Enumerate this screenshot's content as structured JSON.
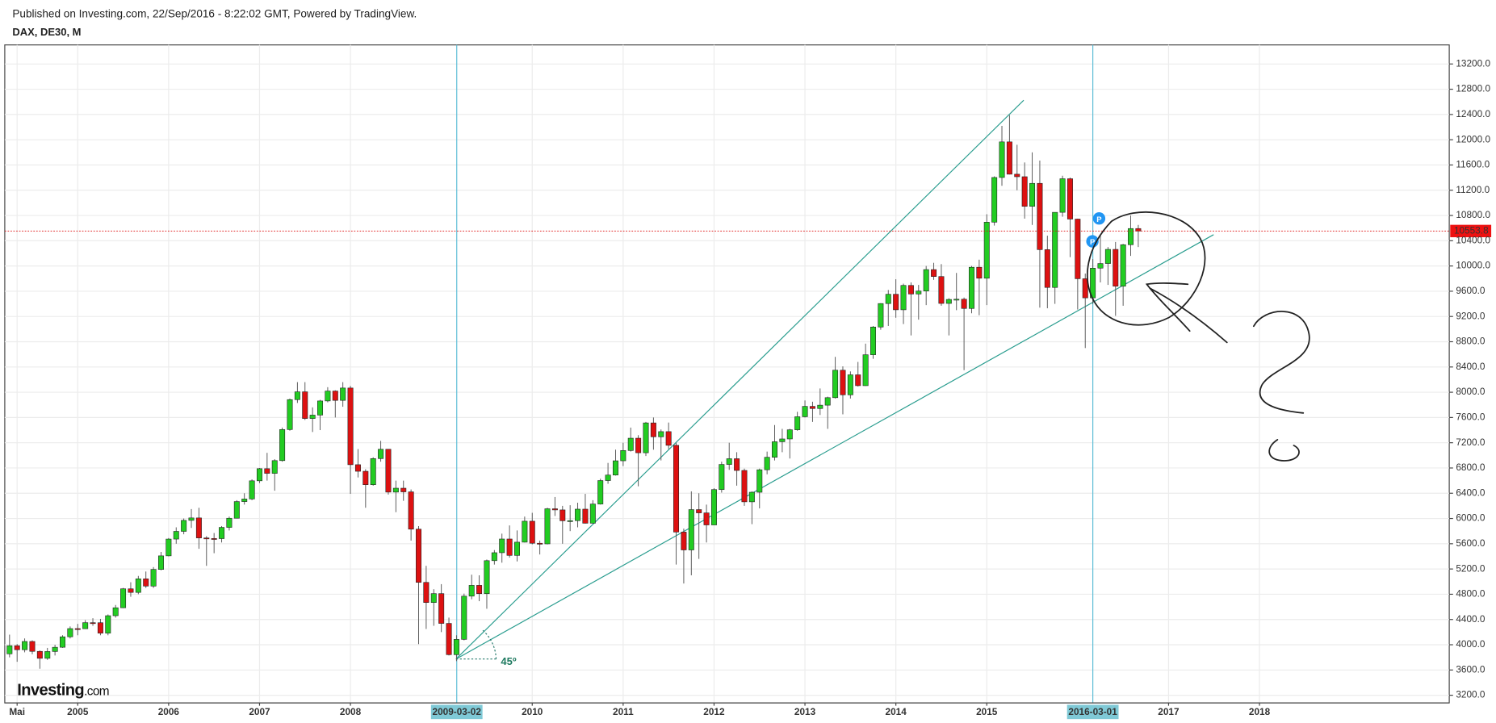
{
  "chart_data": {
    "type": "candlestick",
    "subtitle": "Published on Investing.com, 22/Sep/2016 - 8:22:02 GMT, Powered by TradingView.",
    "title": "DAX, DE30, M",
    "logo": "Investing",
    "logo_suffix": ".com",
    "annotation": "45º",
    "markers": [
      "P",
      "P"
    ],
    "crosshairs": [
      "2009-03-02",
      "2016-03-01"
    ],
    "up_color": "#22cc22",
    "down_color": "#dd1111",
    "grid": true,
    "ylim": [
      3079,
      13502
    ],
    "yticks": [
      {
        "value": 3200,
        "label": "3200.0"
      },
      {
        "value": 3600,
        "label": "3600.0"
      },
      {
        "value": 4000,
        "label": "4000.0"
      },
      {
        "value": 4400,
        "label": "4400.0"
      },
      {
        "value": 4800,
        "label": "4800.0"
      },
      {
        "value": 5200,
        "label": "5200.0"
      },
      {
        "value": 5600,
        "label": "5600.0"
      },
      {
        "value": 6000,
        "label": "6000.0"
      },
      {
        "value": 6400,
        "label": "6400.0"
      },
      {
        "value": 6800,
        "label": "6800.0"
      },
      {
        "value": 7200,
        "label": "7200.0"
      },
      {
        "value": 7600,
        "label": "7600.0"
      },
      {
        "value": 8000,
        "label": "8000.0"
      },
      {
        "value": 8400,
        "label": "8400.0"
      },
      {
        "value": 8800,
        "label": "8800.0"
      },
      {
        "value": 9200,
        "label": "9200.0"
      },
      {
        "value": 9600,
        "label": "9600.0"
      },
      {
        "value": 10000,
        "label": "10000.0"
      },
      {
        "value": 10400,
        "label": "10400.0"
      },
      {
        "value": 10800,
        "label": "10800.0"
      },
      {
        "value": 11200,
        "label": "11200.0"
      },
      {
        "value": 11600,
        "label": "11600.0"
      },
      {
        "value": 12000,
        "label": "12000.0"
      },
      {
        "value": 12400,
        "label": "12400.0"
      },
      {
        "value": 12800,
        "label": "12800.0"
      },
      {
        "value": 13200,
        "label": "13200.0"
      }
    ],
    "xticks": [
      {
        "value": "2004-05",
        "label": "Mai"
      },
      {
        "value": "2005-01",
        "label": "2005"
      },
      {
        "value": "2006-01",
        "label": "2006"
      },
      {
        "value": "2007-01",
        "label": "2007"
      },
      {
        "value": "2008-01",
        "label": "2008"
      },
      {
        "value": "2010-01",
        "label": "2010"
      },
      {
        "value": "2011-01",
        "label": "2011"
      },
      {
        "value": "2012-01",
        "label": "2012"
      },
      {
        "value": "2013-01",
        "label": "2013"
      },
      {
        "value": "2014-01",
        "label": "2014"
      },
      {
        "value": "2015-01",
        "label": "2015"
      },
      {
        "value": "2017-01",
        "label": "2017"
      },
      {
        "value": "2018-01",
        "label": "2018"
      }
    ],
    "x": [
      "2004-04",
      "2004-05",
      "2004-06",
      "2004-07",
      "2004-08",
      "2004-09",
      "2004-10",
      "2004-11",
      "2004-12",
      "2005-01",
      "2005-02",
      "2005-03",
      "2005-04",
      "2005-05",
      "2005-06",
      "2005-07",
      "2005-08",
      "2005-09",
      "2005-10",
      "2005-11",
      "2005-12",
      "2006-01",
      "2006-02",
      "2006-03",
      "2006-04",
      "2006-05",
      "2006-06",
      "2006-07",
      "2006-08",
      "2006-09",
      "2006-10",
      "2006-11",
      "2006-12",
      "2007-01",
      "2007-02",
      "2007-03",
      "2007-04",
      "2007-05",
      "2007-06",
      "2007-07",
      "2007-08",
      "2007-09",
      "2007-10",
      "2007-11",
      "2007-12",
      "2008-01",
      "2008-02",
      "2008-03",
      "2008-04",
      "2008-05",
      "2008-06",
      "2008-07",
      "2008-08",
      "2008-09",
      "2008-10",
      "2008-11",
      "2008-12",
      "2009-01",
      "2009-02",
      "2009-03",
      "2009-04",
      "2009-05",
      "2009-06",
      "2009-07",
      "2009-08",
      "2009-09",
      "2009-10",
      "2009-11",
      "2009-12",
      "2010-01",
      "2010-02",
      "2010-03",
      "2010-04",
      "2010-05",
      "2010-06",
      "2010-07",
      "2010-08",
      "2010-09",
      "2010-10",
      "2010-11",
      "2010-12",
      "2011-01",
      "2011-02",
      "2011-03",
      "2011-04",
      "2011-05",
      "2011-06",
      "2011-07",
      "2011-08",
      "2011-09",
      "2011-10",
      "2011-11",
      "2011-12",
      "2012-01",
      "2012-02",
      "2012-03",
      "2012-04",
      "2012-05",
      "2012-06",
      "2012-07",
      "2012-08",
      "2012-09",
      "2012-10",
      "2012-11",
      "2012-12",
      "2013-01",
      "2013-02",
      "2013-03",
      "2013-04",
      "2013-05",
      "2013-06",
      "2013-07",
      "2013-08",
      "2013-09",
      "2013-10",
      "2013-11",
      "2013-12",
      "2014-01",
      "2014-02",
      "2014-03",
      "2014-04",
      "2014-05",
      "2014-06",
      "2014-07",
      "2014-08",
      "2014-09",
      "2014-10",
      "2014-11",
      "2014-12",
      "2015-01",
      "2015-02",
      "2015-03",
      "2015-04",
      "2015-05",
      "2015-06",
      "2015-07",
      "2015-08",
      "2015-09",
      "2015-10",
      "2015-11",
      "2015-12",
      "2016-01",
      "2016-02",
      "2016-03",
      "2016-04",
      "2016-05",
      "2016-06",
      "2016-07",
      "2016-08",
      "2016-09"
    ],
    "open": [
      3856,
      3985,
      3921,
      4052,
      3895,
      3785,
      3893,
      3960,
      4126,
      4256,
      4254,
      4350,
      4349,
      4184,
      4460,
      4586,
      4886,
      4829,
      5044,
      4929,
      5193,
      5408,
      5674,
      5796,
      5970,
      6009,
      5692,
      5683,
      5681,
      5859,
      6004,
      6268,
      6309,
      6597,
      6789,
      6715,
      6917,
      7409,
      7883,
      8007,
      7584,
      7638,
      7862,
      8019,
      7871,
      8067,
      6852,
      6748,
      6535,
      6949,
      7097,
      6418,
      6480,
      6422,
      5831,
      4988,
      4669,
      4810,
      4338,
      3843,
      4085,
      4770,
      4941,
      4809,
      5332,
      5458,
      5675,
      5415,
      5625,
      5957,
      5608,
      5598,
      6154,
      6136,
      5964,
      5966,
      6148,
      5925,
      6229,
      6601,
      6688,
      6914,
      7077,
      7272,
      7041,
      7514,
      7294,
      7376,
      7159,
      5785,
      5502,
      6141,
      6089,
      5898,
      6458,
      6856,
      6947,
      6761,
      6264,
      6416,
      6772,
      6970,
      7216,
      7260,
      7405,
      7612,
      7776,
      7742,
      7795,
      7914,
      8349,
      7959,
      8276,
      8104,
      8594,
      9033,
      9405,
      9552,
      9306,
      9692,
      9556,
      9603,
      9943,
      9833,
      9407,
      9470,
      9474,
      9327,
      9980,
      9806,
      10694,
      11402,
      11966,
      11454,
      11414,
      10945,
      11309,
      10259,
      9660,
      10850,
      11382,
      10743,
      9798,
      9495,
      9966,
      10039,
      10263,
      9680,
      10337,
      10593
    ],
    "high": [
      4160,
      4010,
      4100,
      4070,
      3910,
      3950,
      4000,
      4150,
      4290,
      4330,
      4390,
      4420,
      4410,
      4480,
      4630,
      4900,
      4990,
      5090,
      5160,
      5230,
      5470,
      5690,
      5860,
      6000,
      6150,
      6170,
      5720,
      5770,
      5880,
      6030,
      6290,
      6400,
      6620,
      6800,
      7040,
      6940,
      7440,
      7900,
      8160,
      8160,
      7760,
      7880,
      8080,
      8030,
      8160,
      8100,
      7100,
      6780,
      6970,
      7230,
      7100,
      6600,
      6600,
      6460,
      5880,
      5250,
      4880,
      4960,
      4430,
      4150,
      4810,
      5110,
      5100,
      5350,
      5500,
      5760,
      5890,
      5810,
      6030,
      6090,
      5650,
      6170,
      6340,
      6200,
      6210,
      6250,
      6390,
      6290,
      6630,
      6880,
      7090,
      7200,
      7440,
      7320,
      7530,
      7600,
      7410,
      7520,
      7200,
      5840,
      6430,
      6400,
      6220,
      6480,
      6900,
      7200,
      7050,
      6790,
      6430,
      6790,
      7060,
      7480,
      7420,
      7420,
      7690,
      7870,
      7850,
      8060,
      7930,
      8560,
      8410,
      8330,
      8480,
      8770,
      9050,
      9410,
      9620,
      9790,
      9720,
      9740,
      9700,
      10000,
      10050,
      10030,
      9490,
      9890,
      9500,
      10000,
      10100,
      10820,
      11420,
      12220,
      12390,
      11920,
      11640,
      11800,
      11670,
      10480,
      10850,
      11430,
      11400,
      10750,
      9880,
      10110,
      10480,
      10300,
      10380,
      10350,
      10800,
      10650
    ],
    "low": [
      3800,
      3730,
      3880,
      3850,
      3620,
      3760,
      3830,
      3950,
      4100,
      4150,
      4250,
      4300,
      4150,
      4150,
      4430,
      4580,
      4760,
      4800,
      4900,
      4900,
      5180,
      5400,
      5600,
      5750,
      5850,
      5520,
      5250,
      5450,
      5620,
      5810,
      6000,
      6220,
      6290,
      6560,
      6600,
      6440,
      6900,
      7390,
      7830,
      7560,
      7370,
      7400,
      7840,
      7600,
      7770,
      6390,
      6650,
      6170,
      6520,
      6900,
      6380,
      6100,
      6280,
      5650,
      4010,
      4250,
      4300,
      4200,
      3830,
      3740,
      4070,
      4720,
      4690,
      4570,
      5270,
      5300,
      5380,
      5320,
      5620,
      5590,
      5430,
      5590,
      6040,
      5600,
      5800,
      5860,
      5920,
      5920,
      6220,
      6550,
      6680,
      6830,
      7060,
      6510,
      6990,
      7090,
      6920,
      7100,
      5270,
      4970,
      5100,
      5360,
      5620,
      5900,
      6410,
      6770,
      6520,
      6200,
      5910,
      6160,
      6700,
      6920,
      7050,
      6950,
      7390,
      7600,
      7530,
      7640,
      7420,
      7900,
      7650,
      7900,
      8090,
      8100,
      8530,
      8990,
      9050,
      9180,
      9080,
      8900,
      9150,
      9380,
      9780,
      9370,
      8900,
      9300,
      8350,
      9250,
      9220,
      9380,
      10640,
      11270,
      11450,
      11200,
      10750,
      10650,
      9340,
      9330,
      9400,
      10780,
      10140,
      9310,
      8700,
      9400,
      9740,
      9700,
      9210,
      9370,
      10160,
      10300
    ],
    "close": [
      3985,
      3921,
      4052,
      3895,
      3785,
      3893,
      3960,
      4126,
      4256,
      4254,
      4350,
      4349,
      4184,
      4460,
      4586,
      4886,
      4829,
      5044,
      4929,
      5193,
      5408,
      5674,
      5796,
      5970,
      6009,
      5692,
      5683,
      5681,
      5859,
      6004,
      6268,
      6309,
      6597,
      6789,
      6715,
      6917,
      7409,
      7883,
      8007,
      7584,
      7638,
      7862,
      8019,
      7871,
      8067,
      6852,
      6748,
      6535,
      6949,
      7097,
      6418,
      6480,
      6422,
      5831,
      4988,
      4669,
      4810,
      4338,
      3843,
      4085,
      4770,
      4941,
      4809,
      5332,
      5458,
      5675,
      5415,
      5625,
      5957,
      5608,
      5598,
      6154,
      6136,
      5964,
      5966,
      6148,
      5925,
      6229,
      6601,
      6688,
      6914,
      7077,
      7272,
      7041,
      7514,
      7294,
      7376,
      7159,
      5785,
      5502,
      6141,
      6089,
      5898,
      6458,
      6856,
      6947,
      6761,
      6264,
      6416,
      6772,
      6970,
      7216,
      7260,
      7405,
      7612,
      7776,
      7742,
      7795,
      7914,
      8349,
      7959,
      8276,
      8104,
      8594,
      9033,
      9405,
      9552,
      9306,
      9692,
      9556,
      9603,
      9943,
      9833,
      9407,
      9470,
      9474,
      9327,
      9980,
      9806,
      10694,
      11402,
      11966,
      11454,
      11414,
      10945,
      11309,
      10259,
      9660,
      10850,
      11382,
      10743,
      9798,
      9495,
      9966,
      10039,
      10263,
      9680,
      10337,
      10593,
      10553.8
    ]
  }
}
